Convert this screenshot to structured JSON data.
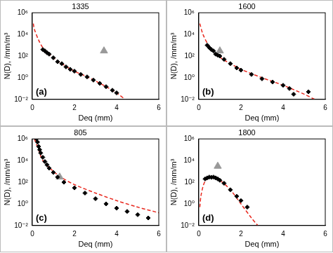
{
  "chart_data": [
    {
      "type": "scatter",
      "title": "1335",
      "annotations": [
        "(a)"
      ],
      "x_label": "Deq (mm)",
      "y_label": "N(D), /mm/m³",
      "log": "y",
      "grid": false,
      "xlim": [
        0,
        6
      ],
      "xticks": [
        0,
        2,
        4,
        6
      ],
      "ylim": [
        0.01,
        1000000
      ],
      "yticks": [
        {
          "value": 0.01,
          "label": "10⁻²"
        },
        {
          "value": 1,
          "label": "10⁰"
        },
        {
          "value": 100,
          "label": "10²"
        },
        {
          "value": 10000,
          "label": "10⁴"
        },
        {
          "value": 1000000,
          "label": "10⁶"
        }
      ],
      "series": [
        {
          "type": "scatter",
          "marker": "diamond",
          "color": "#000000",
          "x": [
            0.5,
            0.6,
            0.7,
            0.8,
            1.0,
            1.2,
            1.4,
            1.6,
            1.8,
            2.0,
            2.3,
            2.6,
            2.9,
            3.2,
            3.5,
            3.8,
            4.0
          ],
          "values": [
            400,
            300,
            200,
            150,
            70,
            30,
            20,
            10,
            6,
            4,
            2,
            1.2,
            0.6,
            0.3,
            0.15,
            0.07,
            0.04
          ]
        },
        {
          "type": "line",
          "line_style": "dashed",
          "color": "#e8281e",
          "x": [
            0.05,
            0.1,
            0.3,
            0.5,
            0.8,
            1.0,
            1.5,
            2.0,
            2.5,
            3.0,
            3.5,
            4.0,
            4.4
          ],
          "values": [
            100000,
            30000,
            3000,
            600,
            150,
            70,
            15,
            4,
            1.5,
            0.5,
            0.15,
            0.04,
            0.01
          ]
        },
        {
          "type": "scatter",
          "marker": "triangle",
          "color": "#999999",
          "x": [
            3.4
          ],
          "values": [
            300
          ]
        }
      ]
    },
    {
      "type": "scatter",
      "title": "1600",
      "annotations": [
        "(b)"
      ],
      "x_label": "Deq (mm)",
      "y_label": "N(D), /mm/m³",
      "log": "y",
      "grid": false,
      "xlim": [
        0,
        6
      ],
      "xticks": [
        0,
        2,
        4,
        6
      ],
      "ylim": [
        0.01,
        1000000
      ],
      "yticks": [
        {
          "value": 0.01,
          "label": "10⁻²"
        },
        {
          "value": 1,
          "label": "10⁰"
        },
        {
          "value": 100,
          "label": "10²"
        },
        {
          "value": 10000,
          "label": "10⁴"
        },
        {
          "value": 1000000,
          "label": "10⁶"
        }
      ],
      "series": [
        {
          "type": "scatter",
          "marker": "diamond",
          "color": "#000000",
          "x": [
            0.4,
            0.5,
            0.6,
            0.7,
            0.8,
            0.9,
            1.0,
            1.2,
            1.5,
            1.8,
            2.0,
            2.5,
            3.0,
            3.5,
            4.0,
            4.3,
            4.5,
            5.2
          ],
          "values": [
            1000,
            600,
            400,
            300,
            150,
            120,
            100,
            50,
            20,
            8,
            5,
            2,
            0.8,
            0.4,
            0.2,
            0.1,
            0.03,
            0.05
          ]
        },
        {
          "type": "line",
          "line_style": "dashed",
          "color": "#e8281e",
          "x": [
            0.05,
            0.2,
            0.5,
            1.0,
            1.5,
            2.0,
            3.0,
            4.0,
            5.0,
            5.5
          ],
          "values": [
            100000,
            10000,
            800,
            80,
            20,
            6,
            1,
            0.2,
            0.03,
            0.01
          ]
        },
        {
          "type": "scatter",
          "marker": "triangle",
          "color": "#999999",
          "x": [
            1.0
          ],
          "values": [
            300
          ]
        }
      ]
    },
    {
      "type": "scatter",
      "title": "805",
      "annotations": [
        "(c)"
      ],
      "x_label": "Deq (mm)",
      "y_label": "N(D), /mm/m³",
      "log": "y",
      "grid": false,
      "xlim": [
        0,
        6
      ],
      "xticks": [
        0,
        2,
        4,
        6
      ],
      "ylim": [
        0.01,
        1000000
      ],
      "yticks": [
        {
          "value": 0.01,
          "label": "10⁻²"
        },
        {
          "value": 1,
          "label": "10⁰"
        },
        {
          "value": 100,
          "label": "10²"
        },
        {
          "value": 10000,
          "label": "10⁴"
        },
        {
          "value": 1000000,
          "label": "10⁶"
        }
      ],
      "series": [
        {
          "type": "scatter",
          "marker": "diamond",
          "color": "#000000",
          "x": [
            0.2,
            0.25,
            0.3,
            0.35,
            0.4,
            0.5,
            0.6,
            0.7,
            0.8,
            1.0,
            1.2,
            1.5,
            2.0,
            2.5,
            3.0,
            3.5,
            4.0,
            4.5,
            5.0,
            5.5
          ],
          "values": [
            1000000,
            500000,
            200000,
            100000,
            50000,
            20000,
            8000,
            4000,
            2000,
            800,
            300,
            100,
            30,
            10,
            3,
            1,
            0.4,
            0.2,
            0.1,
            0.05
          ]
        },
        {
          "type": "line",
          "line_style": "dashed",
          "color": "#e8281e",
          "x": [
            0.1,
            0.3,
            0.5,
            1.0,
            1.5,
            2.0,
            3.0,
            4.0,
            5.0,
            6.0
          ],
          "values": [
            1000000,
            100000,
            10000,
            1000,
            200,
            60,
            10,
            2,
            0.5,
            0.15
          ]
        },
        {
          "type": "scatter",
          "marker": "triangle",
          "color": "#999999",
          "x": [
            1.3
          ],
          "values": [
            300
          ]
        }
      ]
    },
    {
      "type": "scatter",
      "title": "1800",
      "annotations": [
        "(d)"
      ],
      "x_label": "Deq (mm)",
      "y_label": "N(D), /mm/m³",
      "log": "y",
      "grid": false,
      "xlim": [
        0,
        6
      ],
      "xticks": [
        0,
        2,
        4,
        6
      ],
      "ylim": [
        0.01,
        1000000
      ],
      "yticks": [
        {
          "value": 0.01,
          "label": "10⁻²"
        },
        {
          "value": 1,
          "label": "10⁰"
        },
        {
          "value": 100,
          "label": "10²"
        },
        {
          "value": 10000,
          "label": "10⁴"
        },
        {
          "value": 1000000,
          "label": "10⁶"
        }
      ],
      "series": [
        {
          "type": "scatter",
          "marker": "diamond",
          "color": "#000000",
          "x": [
            0.3,
            0.4,
            0.5,
            0.6,
            0.7,
            0.8,
            0.9,
            1.0,
            1.2,
            1.5,
            1.8,
            2.0,
            2.3
          ],
          "values": [
            200,
            250,
            300,
            280,
            300,
            250,
            200,
            150,
            80,
            20,
            5,
            2,
            0.5
          ]
        },
        {
          "type": "line",
          "line_style": "dashed",
          "color": "#e8281e",
          "x": [
            0.05,
            0.1,
            0.2,
            0.3,
            0.5,
            0.7,
            1.0,
            1.5,
            2.0,
            2.5,
            2.8
          ],
          "values": [
            0.5,
            5,
            40,
            120,
            300,
            300,
            150,
            20,
            1,
            0.05,
            0.01
          ]
        },
        {
          "type": "scatter",
          "marker": "triangle",
          "color": "#999999",
          "x": [
            0.9
          ],
          "values": [
            3000
          ]
        }
      ]
    }
  ]
}
